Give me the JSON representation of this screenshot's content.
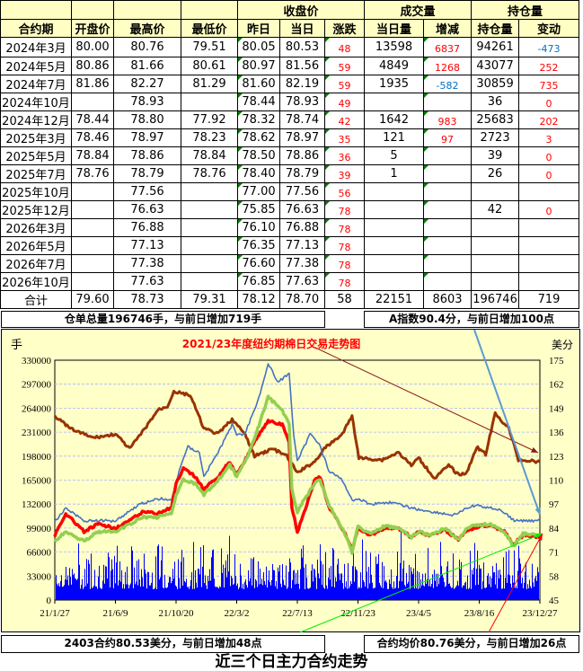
{
  "table": {
    "group_headers": {
      "close": "收盘价",
      "volume": "成交量",
      "oi": "持仓量"
    },
    "headers": [
      "合约期",
      "开盘价",
      "最高价",
      "最低价",
      "昨日",
      "当日",
      "涨跌",
      "当日量",
      "增减",
      "持仓量",
      "变动"
    ],
    "rows": [
      [
        "2024年3月",
        "80.00",
        "80.76",
        "79.51",
        "80.05",
        "80.53",
        "48",
        "13598",
        "6837",
        "94261",
        "-473"
      ],
      [
        "2024年5月",
        "80.86",
        "81.66",
        "80.61",
        "80.97",
        "81.56",
        "59",
        "4849",
        "1268",
        "43077",
        "252"
      ],
      [
        "2024年7月",
        "81.86",
        "82.27",
        "81.29",
        "81.60",
        "82.19",
        "59",
        "1935",
        "-582",
        "30859",
        "735"
      ],
      [
        "2024年10月",
        "",
        "78.93",
        "",
        "78.44",
        "78.93",
        "49",
        "",
        "",
        "36",
        "0"
      ],
      [
        "2024年12月",
        "78.44",
        "78.80",
        "77.92",
        "78.32",
        "78.74",
        "42",
        "1642",
        "983",
        "25683",
        "202"
      ],
      [
        "2025年3月",
        "78.46",
        "78.97",
        "78.23",
        "78.62",
        "78.97",
        "35",
        "121",
        "97",
        "2723",
        "3"
      ],
      [
        "2025年5月",
        "78.84",
        "78.86",
        "78.84",
        "78.50",
        "78.86",
        "36",
        "5",
        "",
        "39",
        "0"
      ],
      [
        "2025年7月",
        "78.76",
        "78.79",
        "78.76",
        "78.40",
        "78.79",
        "39",
        "1",
        "",
        "26",
        "0"
      ],
      [
        "2025年10月",
        "",
        "77.56",
        "",
        "77.00",
        "77.56",
        "56",
        "",
        "",
        "",
        ""
      ],
      [
        "2025年12月",
        "",
        "76.63",
        "",
        "75.85",
        "76.63",
        "78",
        "",
        "",
        "42",
        "0"
      ],
      [
        "2026年3月",
        "",
        "76.88",
        "",
        "76.10",
        "76.88",
        "78",
        "",
        "",
        "",
        ""
      ],
      [
        "2026年5月",
        "",
        "77.13",
        "",
        "76.35",
        "77.13",
        "78",
        "",
        "",
        "",
        ""
      ],
      [
        "2026年7月",
        "",
        "77.38",
        "",
        "76.60",
        "77.38",
        "78",
        "",
        "",
        "",
        ""
      ],
      [
        "2026年10月",
        "",
        "77.63",
        "",
        "76.85",
        "77.63",
        "78",
        "",
        "",
        "",
        ""
      ]
    ],
    "total": [
      "合计",
      "79.60",
      "78.73",
      "79.31",
      "78.12",
      "78.70",
      "58",
      "22151",
      "8603",
      "196746",
      "719"
    ]
  },
  "summary": {
    "warehouse": "仓单总量196746手，与前日增加719手",
    "a_index": "A指数90.4分，与前日增加100点",
    "main_contract": "2403合约80.53美分，与前日增加48点",
    "avg_price": "合约均价80.76美分，与前日增加26点"
  },
  "footer_title": "近三个日主力合约走势",
  "colors": {
    "header_bg": "#FFFFC4",
    "chart_bg": "#FFFFC8",
    "up": "#FF0000",
    "down": "#0070C0",
    "volume": "#0000FF",
    "brown": "#993300",
    "red": "#FF0000",
    "green": "#92D050",
    "blue": "#4472C4"
  },
  "chart_data": {
    "type": "line",
    "title": "2021/23年度纽约期棉日交易走势图",
    "ylabel_left": "手",
    "ylabel_right": "美分",
    "yticks_left": [
      "330000",
      "297000",
      "264000",
      "231000",
      "198000",
      "165000",
      "132000",
      "99000",
      "66000",
      "33000",
      "0"
    ],
    "yticks_right": [
      "175",
      "162",
      "149",
      "136",
      "123",
      "110",
      "97",
      "84",
      "71",
      "58",
      "45"
    ],
    "ylim_left": [
      0,
      330000
    ],
    "ylim_right": [
      45,
      175
    ],
    "xticks": [
      "21/1/27",
      "21/6/9",
      "21/10/20",
      "22/3/2",
      "22/7/13",
      "22/11/23",
      "23/4/5",
      "23/8/16",
      "23/12/27"
    ],
    "xlim": [
      "2021-01-27",
      "2023-12-27"
    ],
    "grid": true,
    "series": [
      {
        "color": "#993300",
        "axis": "right",
        "points": [
          [
            "2021-01-27",
            145
          ],
          [
            "2021-03-01",
            138
          ],
          [
            "2021-04-20",
            133
          ],
          [
            "2021-05-20",
            134
          ],
          [
            "2021-06-09",
            135
          ],
          [
            "2021-07-10",
            127
          ],
          [
            "2021-08-10",
            137
          ],
          [
            "2021-09-10",
            148
          ],
          [
            "2021-10-01",
            150
          ],
          [
            "2021-10-15",
            158
          ],
          [
            "2021-11-20",
            156
          ],
          [
            "2021-12-20",
            138
          ],
          [
            "2022-01-20",
            135
          ],
          [
            "2022-02-20",
            143
          ],
          [
            "2022-03-02",
            140
          ],
          [
            "2022-03-20",
            135
          ],
          [
            "2022-04-10",
            123
          ],
          [
            "2022-05-20",
            127
          ],
          [
            "2022-06-20",
            123
          ],
          [
            "2022-07-13",
            114
          ],
          [
            "2022-08-20",
            120
          ],
          [
            "2022-09-10",
            127
          ],
          [
            "2022-10-20",
            135
          ],
          [
            "2022-11-10",
            145
          ],
          [
            "2022-11-25",
            122
          ],
          [
            "2023-01-15",
            121
          ],
          [
            "2023-02-20",
            125
          ],
          [
            "2023-03-20",
            118
          ],
          [
            "2023-04-05",
            122
          ],
          [
            "2023-05-10",
            111
          ],
          [
            "2023-06-10",
            118
          ],
          [
            "2023-07-01",
            113
          ],
          [
            "2023-07-20",
            114
          ],
          [
            "2023-08-10",
            128
          ],
          [
            "2023-08-30",
            124
          ],
          [
            "2023-09-20",
            146
          ],
          [
            "2023-10-20",
            138
          ],
          [
            "2023-11-10",
            121
          ],
          [
            "2023-12-27",
            120
          ]
        ]
      },
      {
        "color": "#4472C4",
        "axis": "right",
        "points": [
          [
            "2021-01-27",
            87
          ],
          [
            "2021-02-20",
            95
          ],
          [
            "2021-04-01",
            88
          ],
          [
            "2021-06-09",
            88
          ],
          [
            "2021-08-01",
            97
          ],
          [
            "2021-09-15",
            100
          ],
          [
            "2021-10-10",
            99
          ],
          [
            "2021-10-30",
            118
          ],
          [
            "2021-11-15",
            128
          ],
          [
            "2021-12-10",
            125
          ],
          [
            "2021-12-20",
            112
          ],
          [
            "2022-01-20",
            125
          ],
          [
            "2022-02-20",
            140
          ],
          [
            "2022-03-02",
            135
          ],
          [
            "2022-03-20",
            135
          ],
          [
            "2022-04-20",
            155
          ],
          [
            "2022-05-10",
            173
          ],
          [
            "2022-06-01",
            163
          ],
          [
            "2022-06-25",
            168
          ],
          [
            "2022-07-05",
            135
          ],
          [
            "2022-07-13",
            120
          ],
          [
            "2022-08-10",
            135
          ],
          [
            "2022-08-30",
            130
          ],
          [
            "2022-09-20",
            115
          ],
          [
            "2022-10-20",
            110
          ],
          [
            "2022-11-10",
            99
          ],
          [
            "2022-11-23",
            100
          ],
          [
            "2022-12-20",
            97
          ],
          [
            "2023-02-01",
            98
          ],
          [
            "2023-04-05",
            94
          ],
          [
            "2023-05-01",
            93
          ],
          [
            "2023-06-20",
            91
          ],
          [
            "2023-08-01",
            96
          ],
          [
            "2023-08-16",
            96
          ],
          [
            "2023-10-01",
            94
          ],
          [
            "2023-11-01",
            88
          ],
          [
            "2023-12-27",
            88
          ]
        ]
      },
      {
        "color": "#FF0000",
        "axis": "right",
        "points": [
          [
            "2021-01-27",
            80
          ],
          [
            "2021-02-20",
            92
          ],
          [
            "2021-04-01",
            82
          ],
          [
            "2021-05-01",
            86
          ],
          [
            "2021-06-09",
            84
          ],
          [
            "2021-07-10",
            88
          ],
          [
            "2021-08-10",
            93
          ],
          [
            "2021-09-10",
            92
          ],
          [
            "2021-10-10",
            95
          ],
          [
            "2021-10-20",
            108
          ],
          [
            "2021-11-05",
            116
          ],
          [
            "2021-12-01",
            112
          ],
          [
            "2021-12-20",
            105
          ],
          [
            "2022-01-20",
            112
          ],
          [
            "2022-02-15",
            120
          ],
          [
            "2022-03-02",
            113
          ],
          [
            "2022-03-25",
            123
          ],
          [
            "2022-04-20",
            135
          ],
          [
            "2022-05-10",
            142
          ],
          [
            "2022-06-10",
            140
          ],
          [
            "2022-06-25",
            130
          ],
          [
            "2022-07-01",
            95
          ],
          [
            "2022-07-13",
            82
          ],
          [
            "2022-07-25",
            90
          ],
          [
            "2022-08-20",
            110
          ],
          [
            "2022-09-01",
            112
          ],
          [
            "2022-09-20",
            95
          ],
          [
            "2022-10-10",
            88
          ],
          [
            "2022-11-01",
            78
          ],
          [
            "2022-11-10",
            72
          ],
          [
            "2022-11-23",
            84
          ],
          [
            "2022-12-20",
            80
          ],
          [
            "2023-01-20",
            84
          ],
          [
            "2023-02-20",
            84
          ],
          [
            "2023-03-20",
            79
          ],
          [
            "2023-04-05",
            82
          ],
          [
            "2023-05-01",
            80
          ],
          [
            "2023-06-01",
            83
          ],
          [
            "2023-07-01",
            78
          ],
          [
            "2023-07-20",
            83
          ],
          [
            "2023-08-16",
            85
          ],
          [
            "2023-09-10",
            86
          ],
          [
            "2023-10-10",
            82
          ],
          [
            "2023-10-30",
            75
          ],
          [
            "2023-11-20",
            80
          ],
          [
            "2023-12-27",
            79
          ]
        ]
      },
      {
        "color": "#92D050",
        "axis": "right",
        "points": [
          [
            "2021-01-27",
            77
          ],
          [
            "2021-02-20",
            82
          ],
          [
            "2021-04-01",
            77
          ],
          [
            "2021-05-01",
            82
          ],
          [
            "2021-06-09",
            82
          ],
          [
            "2021-07-10",
            86
          ],
          [
            "2021-08-10",
            90
          ],
          [
            "2021-09-10",
            90
          ],
          [
            "2021-10-10",
            92
          ],
          [
            "2021-10-20",
            102
          ],
          [
            "2021-11-05",
            110
          ],
          [
            "2021-12-01",
            108
          ],
          [
            "2021-12-20",
            102
          ],
          [
            "2022-01-20",
            110
          ],
          [
            "2022-02-15",
            118
          ],
          [
            "2022-03-02",
            112
          ],
          [
            "2022-03-25",
            122
          ],
          [
            "2022-04-20",
            140
          ],
          [
            "2022-05-10",
            155
          ],
          [
            "2022-06-10",
            148
          ],
          [
            "2022-06-25",
            140
          ],
          [
            "2022-07-01",
            105
          ],
          [
            "2022-07-13",
            93
          ],
          [
            "2022-07-25",
            98
          ],
          [
            "2022-08-20",
            108
          ],
          [
            "2022-09-01",
            110
          ],
          [
            "2022-09-20",
            97
          ],
          [
            "2022-10-10",
            88
          ],
          [
            "2022-11-01",
            78
          ],
          [
            "2022-11-10",
            71
          ],
          [
            "2022-11-23",
            85
          ],
          [
            "2022-12-20",
            81
          ],
          [
            "2023-01-20",
            85
          ],
          [
            "2023-02-20",
            84
          ],
          [
            "2023-03-20",
            79
          ],
          [
            "2023-04-05",
            82
          ],
          [
            "2023-05-01",
            80
          ],
          [
            "2023-06-01",
            84
          ],
          [
            "2023-07-01",
            78
          ],
          [
            "2023-07-20",
            84
          ],
          [
            "2023-08-16",
            86
          ],
          [
            "2023-09-10",
            86
          ],
          [
            "2023-10-10",
            82
          ],
          [
            "2023-10-30",
            74
          ],
          [
            "2023-11-20",
            81
          ],
          [
            "2023-12-27",
            80
          ]
        ]
      }
    ],
    "volume": {
      "color": "#0000FF",
      "axis": "left"
    }
  }
}
